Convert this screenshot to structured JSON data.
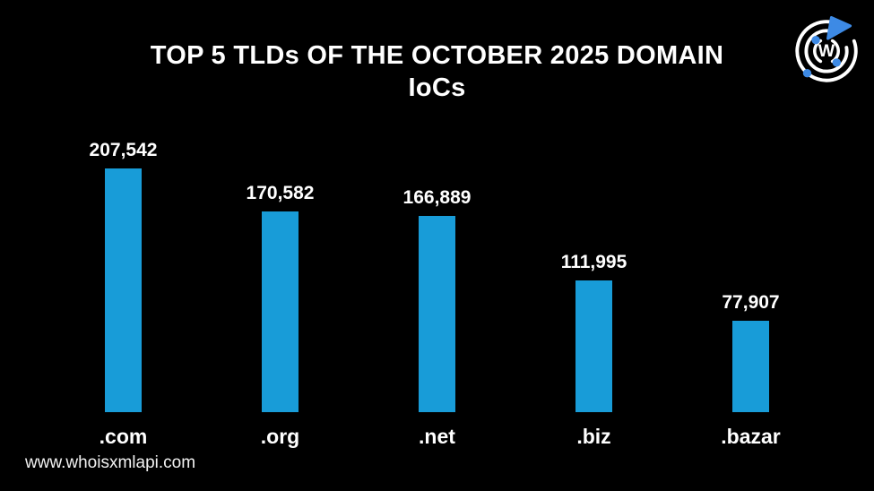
{
  "page": {
    "background": "#000000",
    "text_color": "#ffffff"
  },
  "title": {
    "line1": "TOP 5 TLDs OF THE OCTOBER 2025 DOMAIN",
    "line2": "IoCs"
  },
  "logo": {
    "name": "whoisxmlapi-logo",
    "letter": "W",
    "ring_color": "#ffffff",
    "accent_color": "#3d8ae5"
  },
  "footer": {
    "url": "www.whoisxmlapi.com"
  },
  "chart_data": {
    "type": "bar",
    "title": "TOP 5 TLDs OF THE OCTOBER 2025 DOMAIN IoCs",
    "categories": [
      ".com",
      ".org",
      ".net",
      ".biz",
      ".bazar"
    ],
    "values": [
      207542,
      170582,
      166889,
      111995,
      77907
    ],
    "value_labels": [
      "207,542",
      "170,582",
      "166,889",
      "111,995",
      "77,907"
    ],
    "xlabel": "",
    "ylabel": "",
    "ylim": [
      0,
      207542
    ],
    "bar_color": "#189cd8",
    "label_color": "#ffffff",
    "background": "#000000",
    "grid": false,
    "legend": false,
    "orientation": "vertical"
  }
}
